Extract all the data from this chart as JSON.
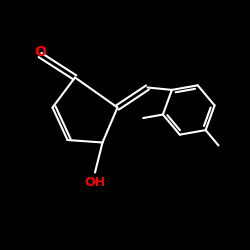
{
  "bg_color": "#000000",
  "bond_color": "#ffffff",
  "O_color": "#ff0000",
  "OH_color": "#ff0000",
  "lw": 1.5,
  "fig_size": [
    2.5,
    2.5
  ],
  "dpi": 100,
  "xlim": [
    0,
    10
  ],
  "ylim": [
    0,
    10
  ]
}
